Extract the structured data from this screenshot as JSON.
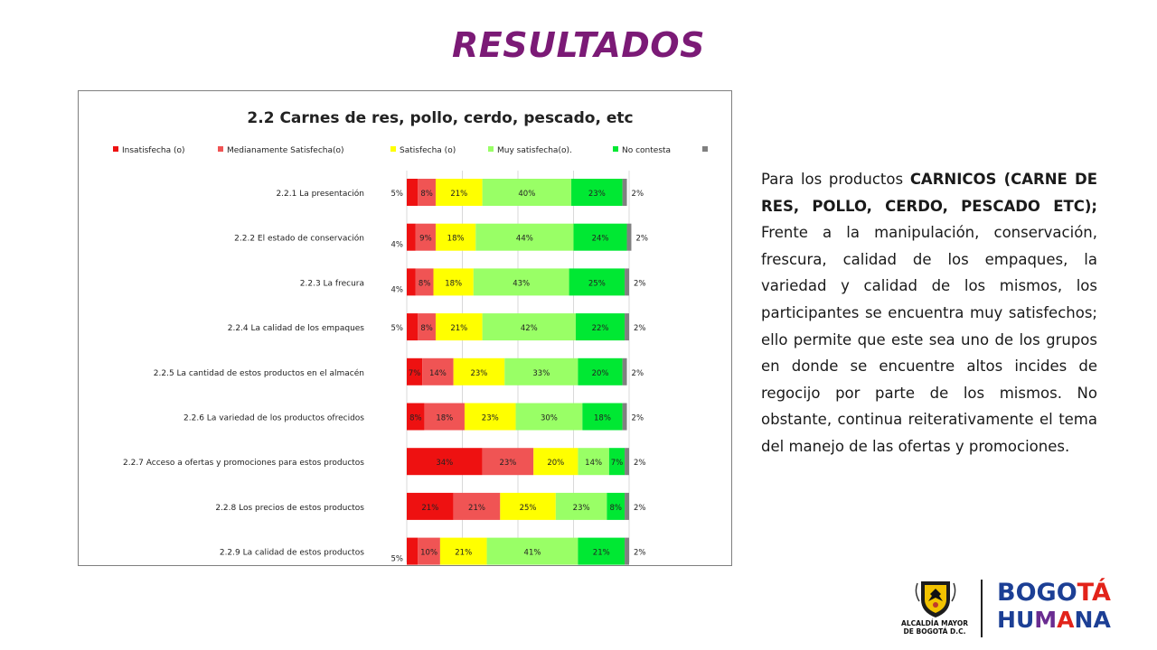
{
  "slide": {
    "title": "RESULTADOS",
    "title_color": "#7b1a76",
    "body_intro": "Para los productos ",
    "body_bold": "CARNICOS (CARNE DE RES, POLLO, CERDO, PESCADO ETC);",
    "body_rest": " Frente a la manipulación, conservación, frescura, calidad de los empaques,  la variedad y calidad de los mismos, los participantes se encuentra muy satisfechos; ello permite que este sea uno de los grupos en donde se encuentre altos incides de regocijo por parte de los mismos. No obstante, continua reiterativamente el tema del manejo de las ofertas y promociones."
  },
  "logos": {
    "alcaldia_line1": "ALCALDÍA MAYOR",
    "alcaldia_line2": "DE BOGOTÁ D.C.",
    "bogota_letters": [
      {
        "ch": "B",
        "color": "#1c3f95"
      },
      {
        "ch": "O",
        "color": "#1c3f95"
      },
      {
        "ch": "G",
        "color": "#1c3f95"
      },
      {
        "ch": "O",
        "color": "#1c3f95"
      },
      {
        "ch": "T",
        "color": "#e2231a"
      },
      {
        "ch": "Á",
        "color": "#e2231a"
      }
    ],
    "humana_letters": [
      {
        "ch": "H",
        "color": "#1c3f95"
      },
      {
        "ch": "U",
        "color": "#1c3f95"
      },
      {
        "ch": "M",
        "color": "#6a2c91"
      },
      {
        "ch": "A",
        "color": "#e2231a"
      },
      {
        "ch": "N",
        "color": "#1c3f95"
      },
      {
        "ch": "A",
        "color": "#1c3f95"
      }
    ]
  },
  "chart_data": {
    "type": "bar",
    "orientation": "horizontal",
    "stacked": true,
    "title": "2.2 Carnes de res, pollo, cerdo, pescado, etc",
    "legend_position": "top",
    "xlim": [
      0,
      100
    ],
    "grid": true,
    "categories": [
      "2.2.1 La presentación",
      "2.2.2 El estado de conservación",
      "2.2.3 La frecura",
      "2.2.4 La calidad de los empaques",
      "2.2.5 La cantidad de estos productos en el almacén",
      "2.2.6 La variedad de los productos ofrecidos",
      "2.2.7 Acceso a ofertas y promociones para estos productos",
      "2.2.8 Los precios de estos productos",
      "2.2.9 La calidad de estos productos"
    ],
    "series": [
      {
        "name": "Insatisfecha (o)",
        "color": "#ee1111",
        "values": [
          5,
          4,
          4,
          5,
          7,
          8,
          34,
          21,
          5
        ],
        "labels": [
          "5%",
          "4%",
          "4%",
          "5%",
          "7%",
          "8%",
          "34%",
          "21%",
          "5%"
        ],
        "label_outside": [
          true,
          true,
          true,
          true,
          false,
          false,
          false,
          false,
          true
        ]
      },
      {
        "name": "Medianamente Satisfecha(o)",
        "color": "#f05454",
        "values": [
          8,
          9,
          8,
          8,
          14,
          18,
          23,
          21,
          10
        ],
        "labels": [
          "8%",
          "9%",
          "8%",
          "8%",
          "14%",
          "18%",
          "23%",
          "21%",
          "10%"
        ]
      },
      {
        "name": "Satisfecha (o)",
        "color": "#ffff00",
        "values": [
          21,
          18,
          18,
          21,
          23,
          23,
          20,
          25,
          21
        ],
        "labels": [
          "21%",
          "18%",
          "18%",
          "21%",
          "23%",
          "23%",
          "20%",
          "25%",
          "21%"
        ]
      },
      {
        "name": "Muy satisfecha(o).",
        "color": "#99ff66",
        "values": [
          40,
          44,
          43,
          42,
          33,
          30,
          14,
          23,
          41
        ],
        "labels": [
          "40%",
          "44%",
          "43%",
          "42%",
          "33%",
          "30%",
          "14%",
          "23%",
          "41%"
        ]
      },
      {
        "name": "No contesta",
        "color": "#00e833",
        "values": [
          23,
          24,
          25,
          22,
          20,
          18,
          7,
          8,
          21
        ],
        "labels": [
          "23%",
          "24%",
          "25%",
          "22%",
          "20%",
          "18%",
          "7%",
          "8%",
          "21%"
        ]
      },
      {
        "name": "",
        "color": "#808080",
        "values": [
          2,
          2,
          2,
          2,
          2,
          2,
          2,
          2,
          2
        ],
        "labels": [
          "2%",
          "2%",
          "2%",
          "2%",
          "2%",
          "2%",
          "2%",
          "2%",
          "2%"
        ]
      }
    ]
  }
}
